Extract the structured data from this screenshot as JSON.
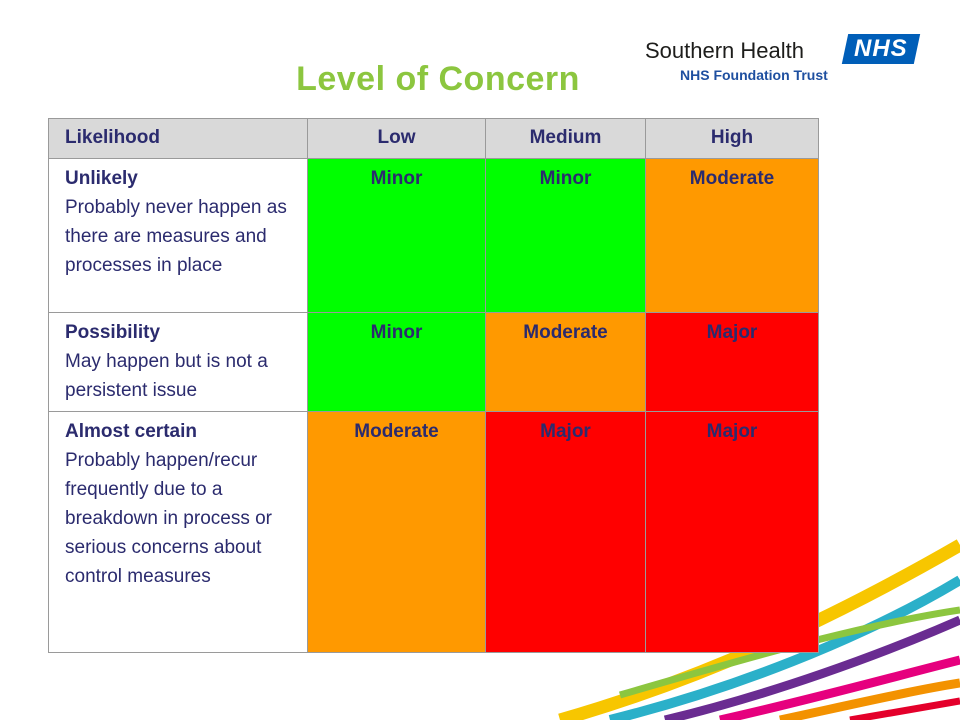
{
  "slide": {
    "title": "Level of Concern"
  },
  "logo": {
    "name": "Southern Health",
    "badge": "NHS",
    "subtitle": "NHS Foundation Trust"
  },
  "table": {
    "headers": [
      "Likelihood",
      "Low",
      "Medium",
      "High"
    ],
    "rows": [
      {
        "title": "Unlikely",
        "description": "Probably never happen as there are measures and processes in place",
        "levels": [
          "Minor",
          "Minor",
          "Moderate"
        ]
      },
      {
        "title": "Possibility",
        "description": "May happen but is not a persistent issue",
        "levels": [
          "Minor",
          "Moderate",
          "Major"
        ]
      },
      {
        "title": "Almost certain",
        "description": "Probably happen/recur frequently due to a breakdown in process or serious concerns about control measures",
        "levels": [
          "Moderate",
          "Major",
          "Major"
        ]
      }
    ]
  },
  "colors": {
    "title": "#8cc63f",
    "header_bg": "#d9d9d9",
    "text": "#2b2b6e",
    "Minor": "#00ff00",
    "Moderate": "#ff9900",
    "Major": "#ff0000",
    "nhs_blue": "#005eb8"
  }
}
